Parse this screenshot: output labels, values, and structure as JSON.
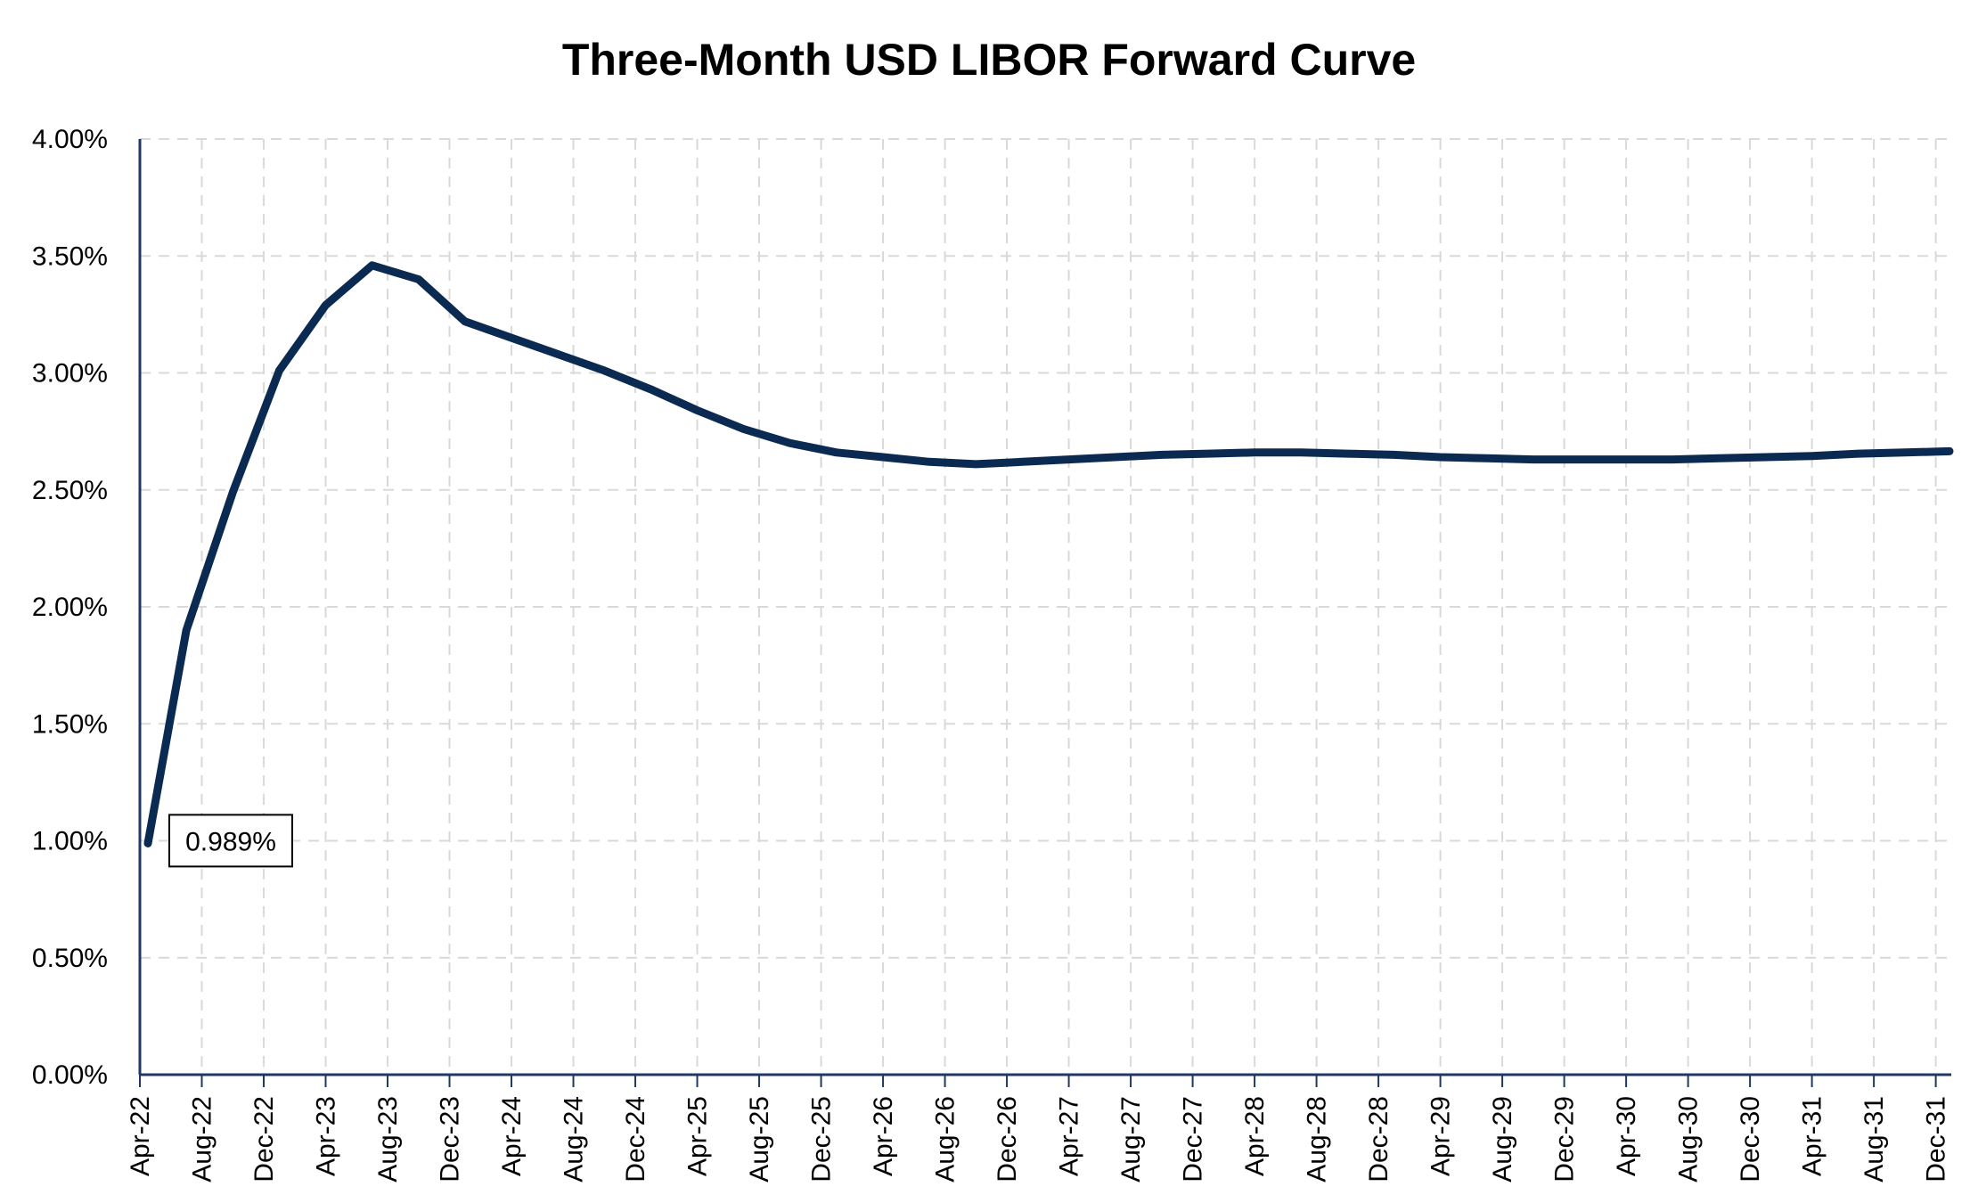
{
  "chart_data": {
    "type": "line",
    "title": "Three-Month USD LIBOR Forward Curve",
    "xlabel": "",
    "ylabel": "",
    "x_tick_labels": [
      "Apr-22",
      "Aug-22",
      "Dec-22",
      "Apr-23",
      "Aug-23",
      "Dec-23",
      "Apr-24",
      "Aug-24",
      "Dec-24",
      "Apr-25",
      "Aug-25",
      "Dec-25",
      "Apr-26",
      "Aug-26",
      "Dec-26",
      "Apr-27",
      "Aug-27",
      "Dec-27",
      "Apr-28",
      "Aug-28",
      "Dec-28",
      "Apr-29",
      "Aug-29",
      "Dec-29",
      "Apr-30",
      "Aug-30",
      "Dec-30",
      "Apr-31",
      "Aug-31",
      "Dec-31"
    ],
    "y_tick_labels": [
      "0.00%",
      "0.50%",
      "1.00%",
      "1.50%",
      "2.00%",
      "2.50%",
      "3.00%",
      "3.50%",
      "4.00%"
    ],
    "ylim": [
      0,
      4.0
    ],
    "xlim": [
      "Apr-22",
      "Dec-31"
    ],
    "y_unit": "%",
    "grid": true,
    "line_color": "#0b2a52",
    "series": [
      {
        "x": [
          "Apr-22",
          "Jul-22",
          "Oct-22",
          "Jan-23",
          "Apr-23",
          "Jul-23",
          "Oct-23",
          "Jan-24",
          "Apr-24",
          "Jul-24",
          "Oct-24",
          "Jan-25",
          "Apr-25",
          "Jul-25",
          "Oct-25",
          "Jan-26",
          "Apr-26",
          "Jul-26",
          "Oct-26",
          "Jan-27",
          "Apr-27",
          "Jul-27",
          "Oct-27",
          "Jan-28",
          "Apr-28",
          "Jul-28",
          "Oct-28",
          "Jan-29",
          "Apr-29",
          "Jul-29",
          "Oct-29",
          "Jan-30",
          "Apr-30",
          "Jul-30",
          "Oct-30",
          "Jan-31",
          "Apr-31",
          "Jul-31",
          "Oct-31",
          "Jan-32"
        ],
        "values": [
          0.989,
          1.9,
          2.49,
          3.01,
          3.29,
          3.46,
          3.4,
          3.22,
          3.15,
          3.08,
          3.01,
          2.93,
          2.84,
          2.76,
          2.7,
          2.66,
          2.64,
          2.62,
          2.61,
          2.62,
          2.63,
          2.64,
          2.65,
          2.655,
          2.66,
          2.66,
          2.655,
          2.65,
          2.64,
          2.635,
          2.63,
          2.63,
          2.63,
          2.63,
          2.635,
          2.64,
          2.645,
          2.655,
          2.66,
          2.665
        ]
      }
    ],
    "annotations": [
      {
        "x": "Apr-22",
        "label": "0.989%"
      }
    ]
  }
}
